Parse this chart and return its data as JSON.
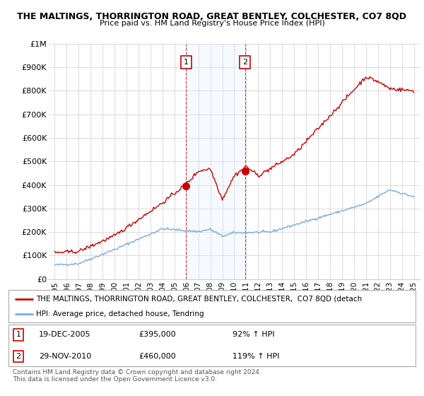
{
  "title": "THE MALTINGS, THORRINGTON ROAD, GREAT BENTLEY, COLCHESTER, CO7 8QD",
  "subtitle": "Price paid vs. HM Land Registry's House Price Index (HPI)",
  "ylabel_ticks": [
    "£0",
    "£100K",
    "£200K",
    "£300K",
    "£400K",
    "£500K",
    "£600K",
    "£700K",
    "£800K",
    "£900K",
    "£1M"
  ],
  "ytick_values": [
    0,
    100000,
    200000,
    300000,
    400000,
    500000,
    600000,
    700000,
    800000,
    900000,
    1000000
  ],
  "ylim": [
    0,
    1000000
  ],
  "xlim_start": 1994.5,
  "xlim_end": 2025.5,
  "red_line_color": "#cc0000",
  "blue_line_color": "#7aaadd",
  "marker1_x": 2005.97,
  "marker1_y": 395000,
  "marker2_x": 2010.91,
  "marker2_y": 460000,
  "legend_line1": "THE MALTINGS, THORRINGTON ROAD, GREAT BENTLEY, COLCHESTER,  CO7 8QD (detach",
  "legend_line2": "HPI: Average price, detached house, Tendring",
  "footnote": "Contains HM Land Registry data © Crown copyright and database right 2024.\nThis data is licensed under the Open Government Licence v3.0.",
  "grid_color": "#cccccc",
  "background_color": "#ffffff",
  "vline1_x": 2005.97,
  "vline2_x": 2010.91,
  "shade_color": "#ddeeff"
}
